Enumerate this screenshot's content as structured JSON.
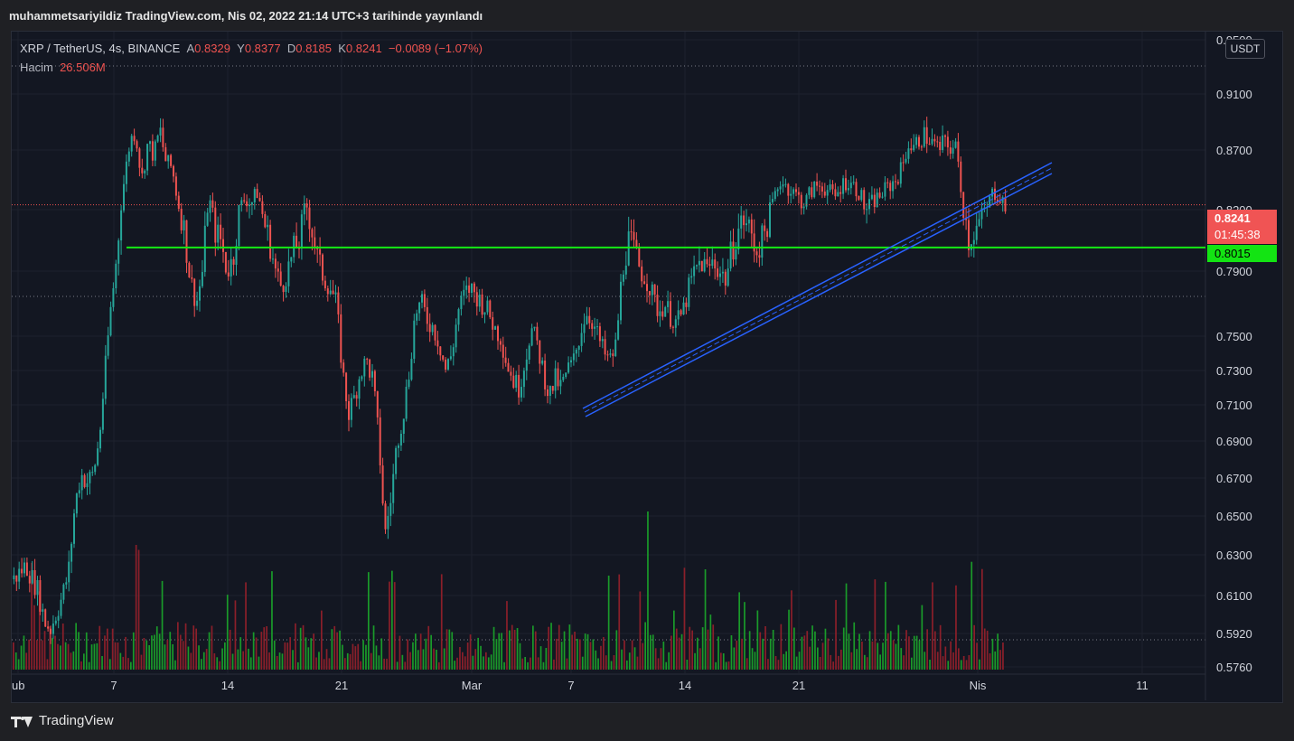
{
  "header": {
    "published_line": "muhammetsariyildiz TradingView.com, Nis 02, 2022 21:14 UTC+3 tarihinde yayınlandı"
  },
  "legend": {
    "symbol": "XRP / TetherUS, 4s, BINANCE",
    "open_label": "A",
    "open": "0.8329",
    "high_label": "Y",
    "high": "0.8377",
    "low_label": "D",
    "low": "0.8185",
    "close_label": "K",
    "close": "0.8241",
    "change": "−0.0089 (−1.07%)",
    "volume_label": "Hacim",
    "volume": "26.506M"
  },
  "axis": {
    "unit_badge": "USDT",
    "last_price": "0.8241",
    "countdown": "01:45:38",
    "level_price": "0.8015"
  },
  "brand": {
    "name": "TradingView"
  },
  "colors": {
    "bull": "#26a69a",
    "bear": "#ef5350",
    "vol_bull": "#1a9a2a",
    "vol_bear": "#8b1f2a",
    "support": "#15e915",
    "channel": "#2962ff"
  },
  "chart_data": {
    "type": "candlestick",
    "symbol": "XRP / TetherUS",
    "interval": "4s",
    "exchange": "BINANCE",
    "x_tick_labels": [
      "ub",
      "7",
      "14",
      "21",
      "Mar",
      "7",
      "14",
      "21",
      "Nis",
      "11"
    ],
    "y_tick_labels": [
      "0.9500",
      "0.9100",
      "0.8700",
      "0.8200",
      "0.7900",
      "0.7500",
      "0.7300",
      "0.7100",
      "0.6900",
      "0.6700",
      "0.6500",
      "0.6300",
      "0.6100",
      "0.5920",
      "0.5760"
    ],
    "y_ticks": [
      0.95,
      0.91,
      0.87,
      0.82,
      0.79,
      0.75,
      0.73,
      0.71,
      0.69,
      0.67,
      0.65,
      0.63,
      0.61,
      0.592,
      0.576
    ],
    "scale": "log",
    "horizontal_level": 0.8015,
    "last_price": 0.8241,
    "path": [
      [
        0,
        0.618
      ],
      [
        2,
        0.625
      ],
      [
        4,
        0.612
      ],
      [
        5,
        0.598
      ],
      [
        6,
        0.594
      ],
      [
        7,
        0.602
      ],
      [
        8,
        0.61
      ],
      [
        9,
        0.622
      ],
      [
        10,
        0.655
      ],
      [
        11,
        0.672
      ],
      [
        12,
        0.668
      ],
      [
        13,
        0.672
      ],
      [
        14,
        0.69
      ],
      [
        15,
        0.73
      ],
      [
        16,
        0.77
      ],
      [
        17,
        0.8
      ],
      [
        18,
        0.84
      ],
      [
        19,
        0.875
      ],
      [
        20,
        0.885
      ],
      [
        21,
        0.845
      ],
      [
        22,
        0.875
      ],
      [
        23,
        0.865
      ],
      [
        24,
        0.885
      ],
      [
        25,
        0.86
      ],
      [
        26,
        0.855
      ],
      [
        27,
        0.825
      ],
      [
        28,
        0.81
      ],
      [
        29,
        0.785
      ],
      [
        30,
        0.77
      ],
      [
        31,
        0.79
      ],
      [
        32,
        0.83
      ],
      [
        33,
        0.81
      ],
      [
        34,
        0.805
      ],
      [
        35,
        0.79
      ],
      [
        36,
        0.795
      ],
      [
        37,
        0.82
      ],
      [
        38,
        0.83
      ],
      [
        39,
        0.825
      ],
      [
        40,
        0.835
      ],
      [
        41,
        0.815
      ],
      [
        42,
        0.805
      ],
      [
        43,
        0.79
      ],
      [
        44,
        0.78
      ],
      [
        45,
        0.79
      ],
      [
        46,
        0.8
      ],
      [
        47,
        0.805
      ],
      [
        48,
        0.825
      ],
      [
        49,
        0.81
      ],
      [
        50,
        0.795
      ],
      [
        51,
        0.785
      ],
      [
        52,
        0.78
      ],
      [
        53,
        0.77
      ],
      [
        54,
        0.73
      ],
      [
        55,
        0.705
      ],
      [
        56,
        0.715
      ],
      [
        57,
        0.73
      ],
      [
        58,
        0.735
      ],
      [
        59,
        0.725
      ],
      [
        60,
        0.69
      ],
      [
        61,
        0.64
      ],
      [
        62,
        0.66
      ],
      [
        63,
        0.69
      ],
      [
        64,
        0.705
      ],
      [
        65,
        0.73
      ],
      [
        66,
        0.765
      ],
      [
        67,
        0.77
      ],
      [
        68,
        0.76
      ],
      [
        69,
        0.755
      ],
      [
        70,
        0.745
      ],
      [
        71,
        0.73
      ],
      [
        72,
        0.74
      ],
      [
        73,
        0.765
      ],
      [
        74,
        0.775
      ],
      [
        75,
        0.78
      ],
      [
        76,
        0.775
      ],
      [
        77,
        0.77
      ],
      [
        78,
        0.765
      ],
      [
        79,
        0.755
      ],
      [
        80,
        0.75
      ],
      [
        81,
        0.735
      ],
      [
        82,
        0.725
      ],
      [
        83,
        0.72
      ],
      [
        84,
        0.735
      ],
      [
        85,
        0.755
      ],
      [
        86,
        0.745
      ],
      [
        87,
        0.73
      ],
      [
        88,
        0.715
      ],
      [
        89,
        0.725
      ],
      [
        90,
        0.72
      ],
      [
        91,
        0.73
      ],
      [
        92,
        0.735
      ],
      [
        93,
        0.75
      ],
      [
        94,
        0.765
      ],
      [
        95,
        0.76
      ],
      [
        96,
        0.75
      ],
      [
        97,
        0.74
      ],
      [
        98,
        0.735
      ],
      [
        99,
        0.745
      ],
      [
        100,
        0.79
      ],
      [
        101,
        0.805
      ],
      [
        102,
        0.8
      ],
      [
        103,
        0.79
      ],
      [
        104,
        0.785
      ],
      [
        105,
        0.775
      ],
      [
        106,
        0.765
      ],
      [
        107,
        0.77
      ],
      [
        108,
        0.762
      ],
      [
        109,
        0.758
      ],
      [
        110,
        0.765
      ],
      [
        111,
        0.78
      ],
      [
        112,
        0.79
      ],
      [
        113,
        0.795
      ],
      [
        114,
        0.79
      ],
      [
        115,
        0.795
      ],
      [
        116,
        0.79
      ],
      [
        117,
        0.785
      ],
      [
        118,
        0.8
      ],
      [
        119,
        0.81
      ],
      [
        120,
        0.815
      ],
      [
        121,
        0.81
      ],
      [
        122,
        0.8
      ],
      [
        123,
        0.805
      ],
      [
        124,
        0.815
      ],
      [
        125,
        0.83
      ],
      [
        126,
        0.845
      ],
      [
        127,
        0.84
      ],
      [
        128,
        0.835
      ],
      [
        129,
        0.83
      ],
      [
        130,
        0.825
      ],
      [
        131,
        0.835
      ],
      [
        132,
        0.84
      ],
      [
        133,
        0.84
      ],
      [
        134,
        0.835
      ],
      [
        135,
        0.83
      ],
      [
        136,
        0.84
      ],
      [
        137,
        0.845
      ],
      [
        138,
        0.84
      ],
      [
        139,
        0.835
      ],
      [
        140,
        0.82
      ],
      [
        141,
        0.825
      ],
      [
        142,
        0.83
      ],
      [
        143,
        0.835
      ],
      [
        144,
        0.84
      ],
      [
        145,
        0.845
      ],
      [
        146,
        0.855
      ],
      [
        147,
        0.875
      ],
      [
        148,
        0.87
      ],
      [
        149,
        0.88
      ],
      [
        150,
        0.88
      ],
      [
        151,
        0.875
      ],
      [
        152,
        0.87
      ],
      [
        153,
        0.875
      ],
      [
        154,
        0.872
      ],
      [
        155,
        0.87
      ],
      [
        156,
        0.825
      ],
      [
        157,
        0.805
      ],
      [
        158,
        0.81
      ],
      [
        159,
        0.815
      ],
      [
        160,
        0.822
      ],
      [
        161,
        0.835
      ],
      [
        162,
        0.832
      ],
      [
        163,
        0.824
      ]
    ],
    "volume_bars": 380
  }
}
